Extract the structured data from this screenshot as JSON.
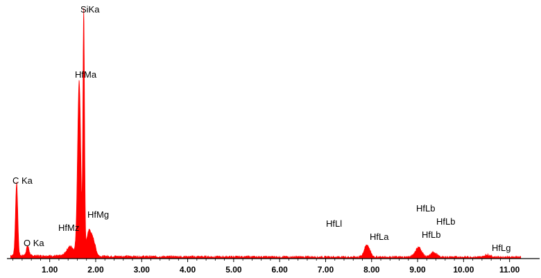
{
  "chart_data": {
    "type": "area",
    "title": "",
    "xlabel": "",
    "ylabel": "",
    "xlim": [
      0.1,
      11.3
    ],
    "ylim": [
      0,
      100
    ],
    "grid": false,
    "legend": "none",
    "color": "#ff0000",
    "xticks": [
      "1.00",
      "2.00",
      "3.00",
      "4.00",
      "5.00",
      "6.00",
      "7.00",
      "8.00",
      "9.00",
      "10.00",
      "11.00"
    ],
    "xtick_values": [
      1,
      2,
      3,
      4,
      5,
      6,
      7,
      8,
      9,
      10,
      11
    ],
    "peaks": [
      {
        "label": "C Ka",
        "x": 0.28,
        "y": 30
      },
      {
        "label": "O Ka",
        "x": 0.52,
        "y": 4
      },
      {
        "label": "HfMz",
        "x": 1.35,
        "y": 3
      },
      {
        "label": "SiKa",
        "x": 1.74,
        "y": 100
      },
      {
        "label": "HfMa",
        "x": 1.64,
        "y": 72
      },
      {
        "label": "HfMg",
        "x": 1.95,
        "y": 8
      },
      {
        "label": "HfLl",
        "x": 6.96,
        "y": 1
      },
      {
        "label": "HfLa",
        "x": 7.9,
        "y": 5
      },
      {
        "label": "HfLb",
        "x": 9.02,
        "y": 4
      },
      {
        "label": "HfLb",
        "x": 9.35,
        "y": 2
      },
      {
        "label": "HfLg",
        "x": 10.52,
        "y": 1
      }
    ]
  }
}
